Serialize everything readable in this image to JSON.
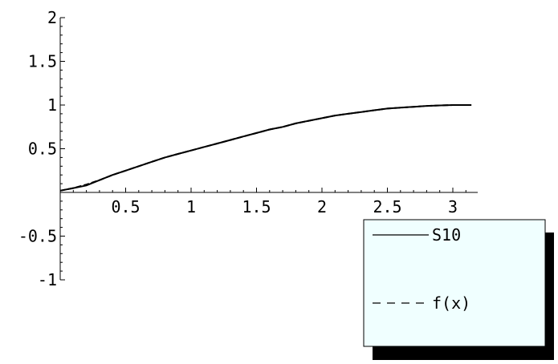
{
  "chart_data": {
    "type": "line",
    "title": "",
    "xlabel": "",
    "ylabel": "",
    "xlim": [
      0,
      3.1416
    ],
    "ylim": [
      -1,
      2
    ],
    "x_ticks": [
      0.5,
      1,
      1.5,
      2,
      2.5,
      3
    ],
    "x_tick_labels": [
      "0.5",
      "1",
      "1.5",
      "2",
      "2.5",
      "3"
    ],
    "y_ticks": [
      -1,
      -0.5,
      0.5,
      1,
      1.5,
      2
    ],
    "y_tick_labels": [
      "-1",
      "-0.5",
      "0.5",
      "1",
      "1.5",
      "2"
    ],
    "grid": false,
    "legend_position": "bottom-right",
    "series": [
      {
        "name": "S10",
        "style": "solid",
        "color": "#000000",
        "x": [
          0,
          0.1,
          0.2,
          0.3,
          0.4,
          0.5,
          0.6,
          0.7,
          0.8,
          0.9,
          1,
          1.1,
          1.2,
          1.3,
          1.4,
          1.5,
          1.6,
          1.7,
          1.8,
          1.9,
          2,
          2.1,
          2.2,
          2.3,
          2.4,
          2.5,
          2.6,
          2.7,
          2.8,
          2.9,
          3,
          3.1,
          3.1416
        ],
        "y": [
          0.02,
          0.05,
          0.08,
          0.14,
          0.2,
          0.25,
          0.3,
          0.35,
          0.4,
          0.44,
          0.48,
          0.52,
          0.56,
          0.6,
          0.64,
          0.68,
          0.72,
          0.75,
          0.79,
          0.82,
          0.85,
          0.88,
          0.9,
          0.92,
          0.94,
          0.96,
          0.97,
          0.98,
          0.99,
          0.995,
          1.0,
          1.0,
          1.0
        ]
      },
      {
        "name": "f(x)",
        "style": "dashed",
        "color": "#000000",
        "x": [
          0,
          0.1,
          0.2,
          0.3,
          0.4,
          0.5,
          0.6,
          0.7,
          0.8,
          0.9,
          1,
          1.1,
          1.2,
          1.3,
          1.4,
          1.5,
          1.6,
          1.7,
          1.8,
          1.9,
          2,
          2.1,
          2.2,
          2.3,
          2.4,
          2.5,
          2.6,
          2.7,
          2.8,
          2.9,
          3,
          3.1,
          3.1416
        ],
        "y": [
          0.02,
          0.05,
          0.09,
          0.14,
          0.2,
          0.25,
          0.3,
          0.35,
          0.4,
          0.44,
          0.48,
          0.52,
          0.56,
          0.6,
          0.64,
          0.68,
          0.72,
          0.75,
          0.79,
          0.82,
          0.85,
          0.88,
          0.9,
          0.92,
          0.94,
          0.96,
          0.97,
          0.98,
          0.99,
          0.995,
          1.0,
          1.0,
          1.0
        ]
      }
    ]
  },
  "legend": {
    "background": "#f0ffff",
    "shadow": "#000000",
    "items": [
      {
        "label": "S10",
        "style": "solid"
      },
      {
        "label": "f(x)",
        "style": "dashed"
      }
    ]
  }
}
